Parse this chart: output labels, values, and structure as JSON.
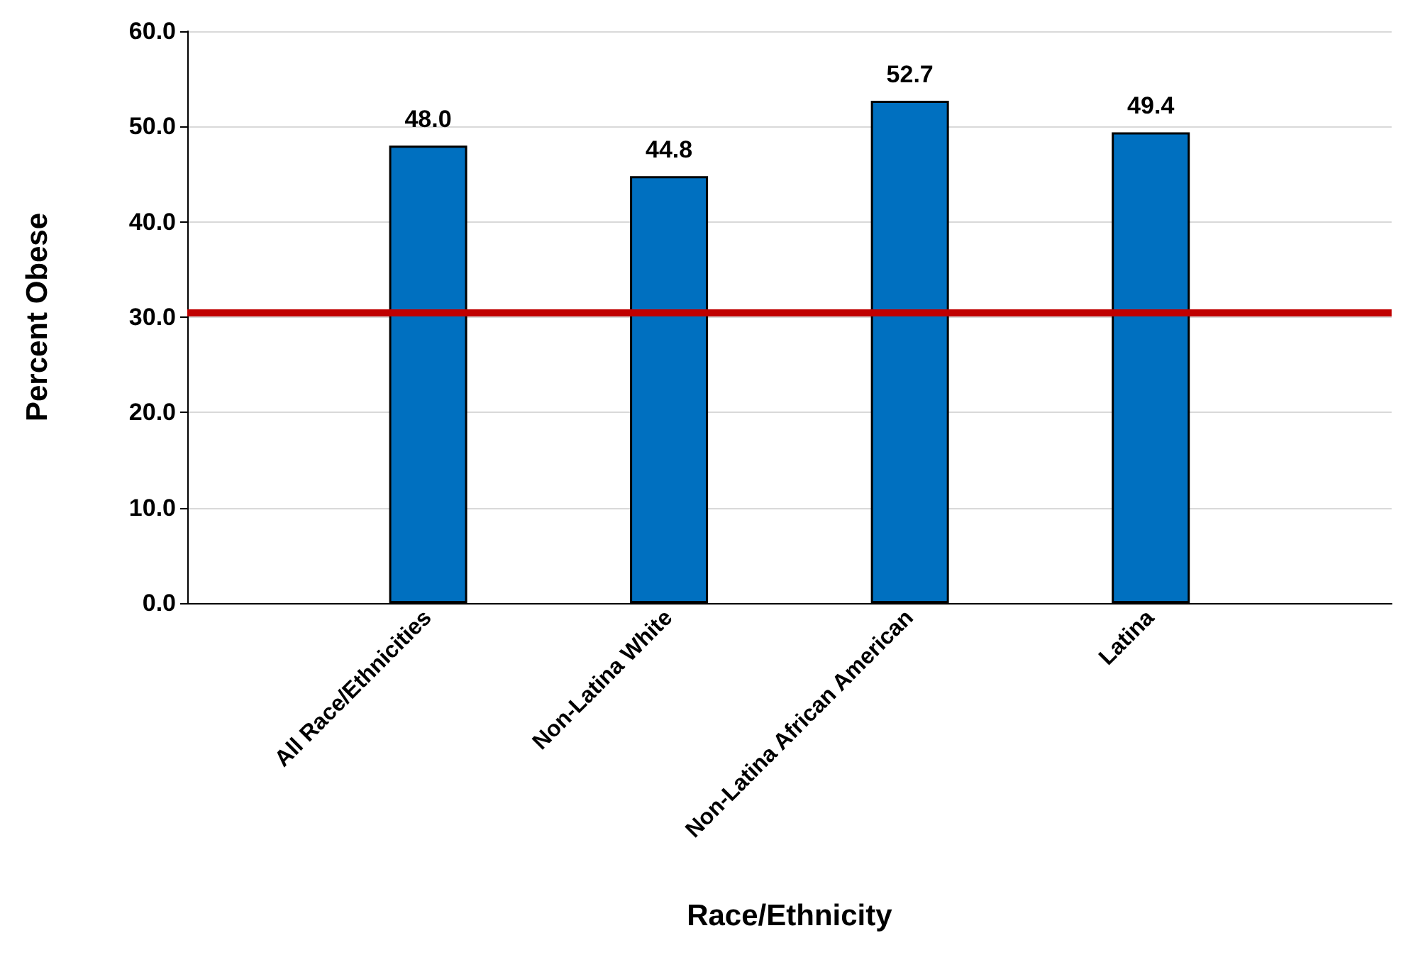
{
  "chart_data": {
    "type": "bar",
    "xlabel": "Race/Ethnicity",
    "ylabel": "Percent Obese",
    "categories": [
      null,
      "All Race/Ethnicities",
      "Non-Latina White",
      "Non-Latina African American",
      "Latina",
      null
    ],
    "values": [
      null,
      48.0,
      44.8,
      52.7,
      49.4,
      null
    ],
    "value_labels": [
      null,
      "48.0",
      "44.8",
      "52.7",
      "49.4",
      null
    ],
    "color": "#0070c0",
    "ylim": [
      0,
      60
    ],
    "yticks": [
      {
        "value": 0,
        "label": "0.0"
      },
      {
        "value": 10,
        "label": "10.0"
      },
      {
        "value": 20,
        "label": "20.0"
      },
      {
        "value": 30,
        "label": "30.0"
      },
      {
        "value": 40,
        "label": "40.0"
      },
      {
        "value": 50,
        "label": "50.0"
      },
      {
        "value": 60,
        "label": "60.0"
      }
    ],
    "ref_lines": [
      {
        "axis": "y",
        "value": 30.5,
        "color": "#c00000"
      }
    ],
    "grid": "y"
  }
}
